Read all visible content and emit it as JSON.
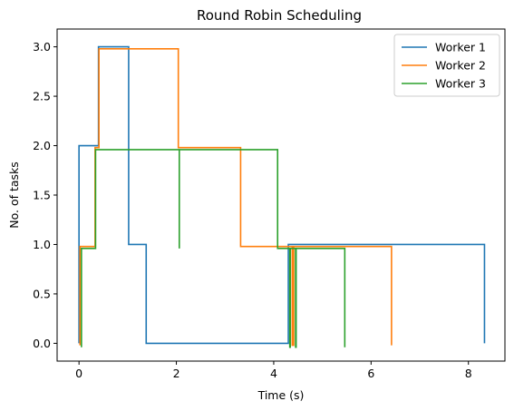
{
  "chart_data": {
    "type": "line",
    "title": "Round Robin Scheduling",
    "xlabel": "Time (s)",
    "ylabel": "No. of tasks",
    "xlim": [
      -0.45,
      8.75
    ],
    "ylim": [
      -0.18,
      3.18
    ],
    "xticks": [
      0,
      2,
      4,
      6,
      8
    ],
    "xtick_labels": [
      "0",
      "2",
      "4",
      "6",
      "8"
    ],
    "yticks": [
      0.0,
      0.5,
      1.0,
      1.5,
      2.0,
      2.5,
      3.0
    ],
    "ytick_labels": [
      "0.0",
      "0.5",
      "1.0",
      "1.5",
      "2.0",
      "2.5",
      "3.0"
    ],
    "grid": false,
    "legend_position": "top-right",
    "step": "post",
    "series": [
      {
        "name": "Worker 1",
        "color": "#1f77b4",
        "x": [
          0.0,
          0.0,
          0.4,
          0.4,
          1.02,
          1.02,
          1.38,
          1.38,
          4.3,
          4.3,
          8.33,
          8.33
        ],
        "y": [
          0.0,
          2.0,
          2.0,
          3.0,
          3.0,
          1.0,
          1.0,
          0.0,
          0.0,
          1.0,
          1.0,
          0.0
        ]
      },
      {
        "name": "Worker 2",
        "color": "#ff7f0e",
        "x": [
          0.02,
          0.02,
          0.33,
          0.33,
          0.41,
          0.41,
          2.04,
          2.04,
          3.32,
          3.32,
          4.38,
          4.38,
          4.41,
          4.41,
          6.42,
          6.42
        ],
        "y": [
          -0.02,
          0.98,
          0.98,
          1.98,
          1.98,
          2.98,
          2.98,
          1.98,
          1.98,
          0.98,
          0.98,
          -0.02,
          -0.02,
          0.98,
          0.98,
          -0.02
        ]
      },
      {
        "name": "Worker 3",
        "color": "#2ca02c",
        "x": [
          0.05,
          0.05,
          0.34,
          0.34,
          2.06,
          2.06,
          2.06,
          4.08,
          4.08,
          4.33,
          4.33,
          4.34,
          4.34,
          4.45,
          4.45,
          4.46,
          4.46,
          5.46,
          5.46
        ],
        "y": [
          -0.04,
          0.96,
          0.96,
          1.96,
          1.96,
          0.96,
          1.96,
          1.96,
          0.96,
          0.96,
          -0.04,
          -0.04,
          0.96,
          0.96,
          -0.04,
          -0.04,
          0.96,
          0.96,
          -0.04
        ]
      }
    ]
  }
}
